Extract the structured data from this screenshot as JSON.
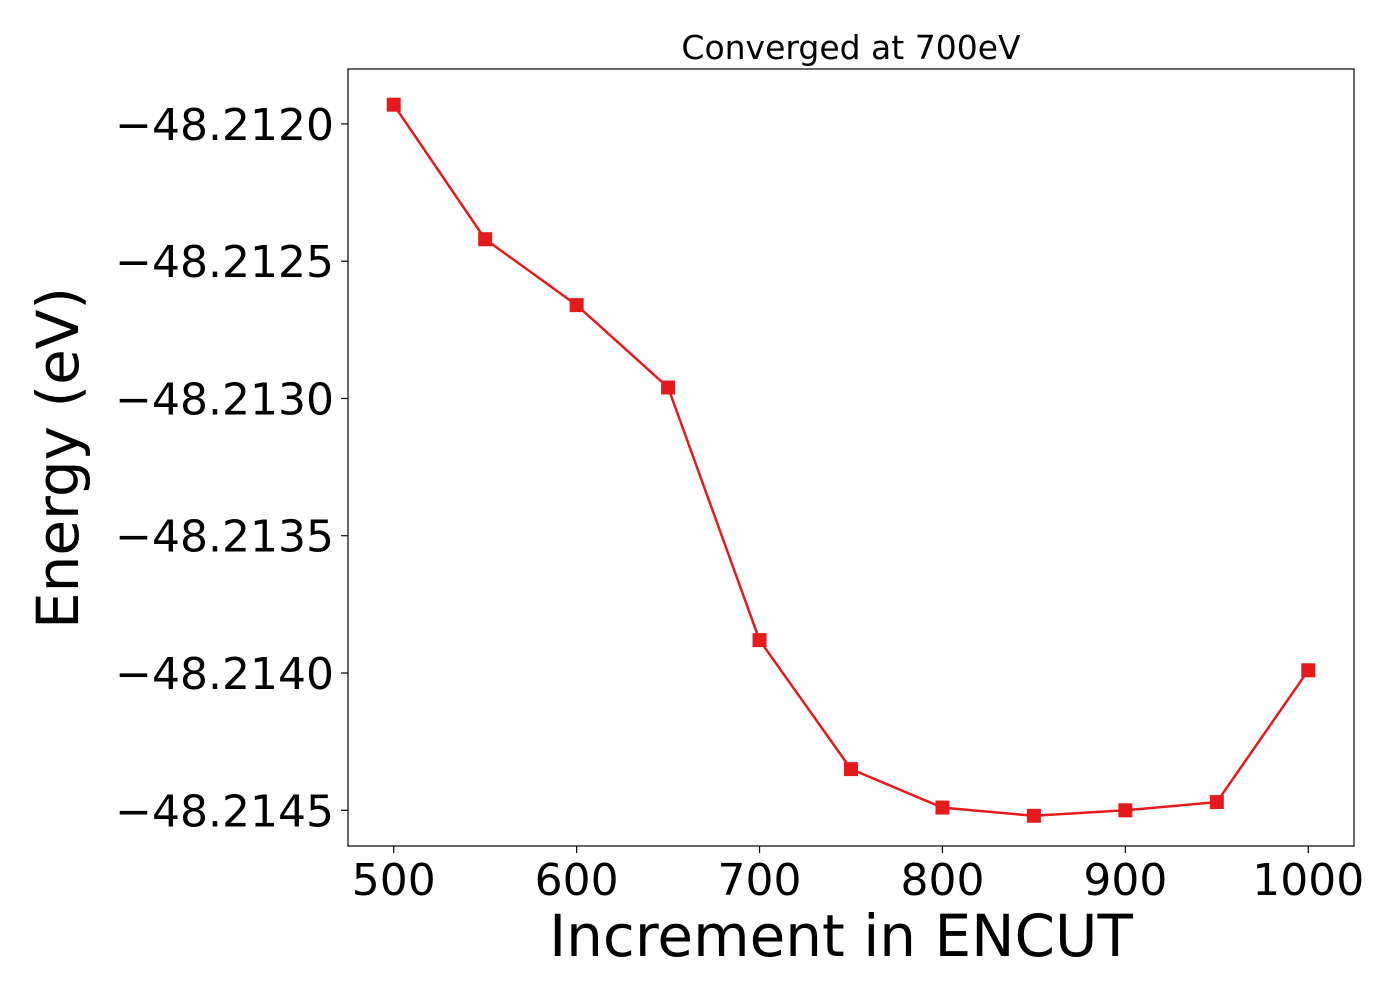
{
  "chart_data": {
    "type": "line",
    "title": "Converged at 700eV",
    "xlabel": "Increment in ENCUT",
    "ylabel": "Energy (eV)",
    "x": [
      500,
      550,
      600,
      650,
      700,
      750,
      800,
      850,
      900,
      950,
      1000
    ],
    "series": [
      {
        "values": [
          -48.21193,
          -48.21242,
          -48.21266,
          -48.21296,
          -48.21388,
          -48.21435,
          -48.21449,
          -48.21452,
          -48.2145,
          -48.21447,
          -48.21399
        ],
        "color": "#e41a1c",
        "marker": "square"
      }
    ],
    "xlim": [
      475,
      1025
    ],
    "ylim": [
      -48.21463,
      -48.2118
    ],
    "xticks": [
      500,
      600,
      700,
      800,
      900,
      1000
    ],
    "xtick_labels": [
      "500",
      "600",
      "700",
      "800",
      "900",
      "1000"
    ],
    "yticks": [
      -48.212,
      -48.2125,
      -48.213,
      -48.2135,
      -48.214,
      -48.2145
    ],
    "ytick_labels": [
      "−48.2120",
      "−48.2125",
      "−48.2130",
      "−48.2135",
      "−48.2140",
      "−48.2145"
    ],
    "grid": false,
    "legend": "none"
  }
}
